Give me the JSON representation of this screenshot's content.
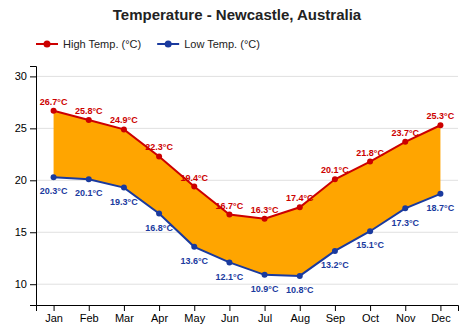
{
  "chart_data": {
    "type": "line",
    "title": "Temperature - Newcastle, Australia",
    "categories": [
      "Jan",
      "Feb",
      "Mar",
      "Apr",
      "May",
      "Jun",
      "Jul",
      "Aug",
      "Sep",
      "Oct",
      "Nov",
      "Dec"
    ],
    "series": [
      {
        "name": "High Temp. (°C)",
        "color": "#cc0000",
        "marker": "circle",
        "values": [
          26.7,
          25.8,
          24.9,
          22.3,
          19.4,
          16.7,
          16.3,
          17.4,
          20.1,
          21.8,
          23.7,
          25.3
        ],
        "value_labels": [
          "26.7°C",
          "25.8°C",
          "24.9°C",
          "22.3°C",
          "19.4°C",
          "16.7°C",
          "16.3°C",
          "17.4°C",
          "20.1°C",
          "21.8°C",
          "23.7°C",
          "25.3°C"
        ]
      },
      {
        "name": "Low Temp. (°C)",
        "color": "#1a3a9e",
        "marker": "circle",
        "values": [
          20.3,
          20.1,
          19.3,
          16.8,
          13.6,
          12.1,
          10.9,
          10.8,
          13.2,
          15.1,
          17.3,
          18.7
        ],
        "value_labels": [
          "20.3°C",
          "20.1°C",
          "19.3°C",
          "16.8°C",
          "13.6°C",
          "12.1°C",
          "10.9°C",
          "10.8°C",
          "13.2°C",
          "15.1°C",
          "17.3°C",
          "18.7°C"
        ]
      }
    ],
    "color": "#ffa500",
    "ylim": [
      8,
      31
    ],
    "yticks": [
      10,
      15,
      20,
      25,
      30
    ],
    "grid": true,
    "legend": "top-left"
  }
}
